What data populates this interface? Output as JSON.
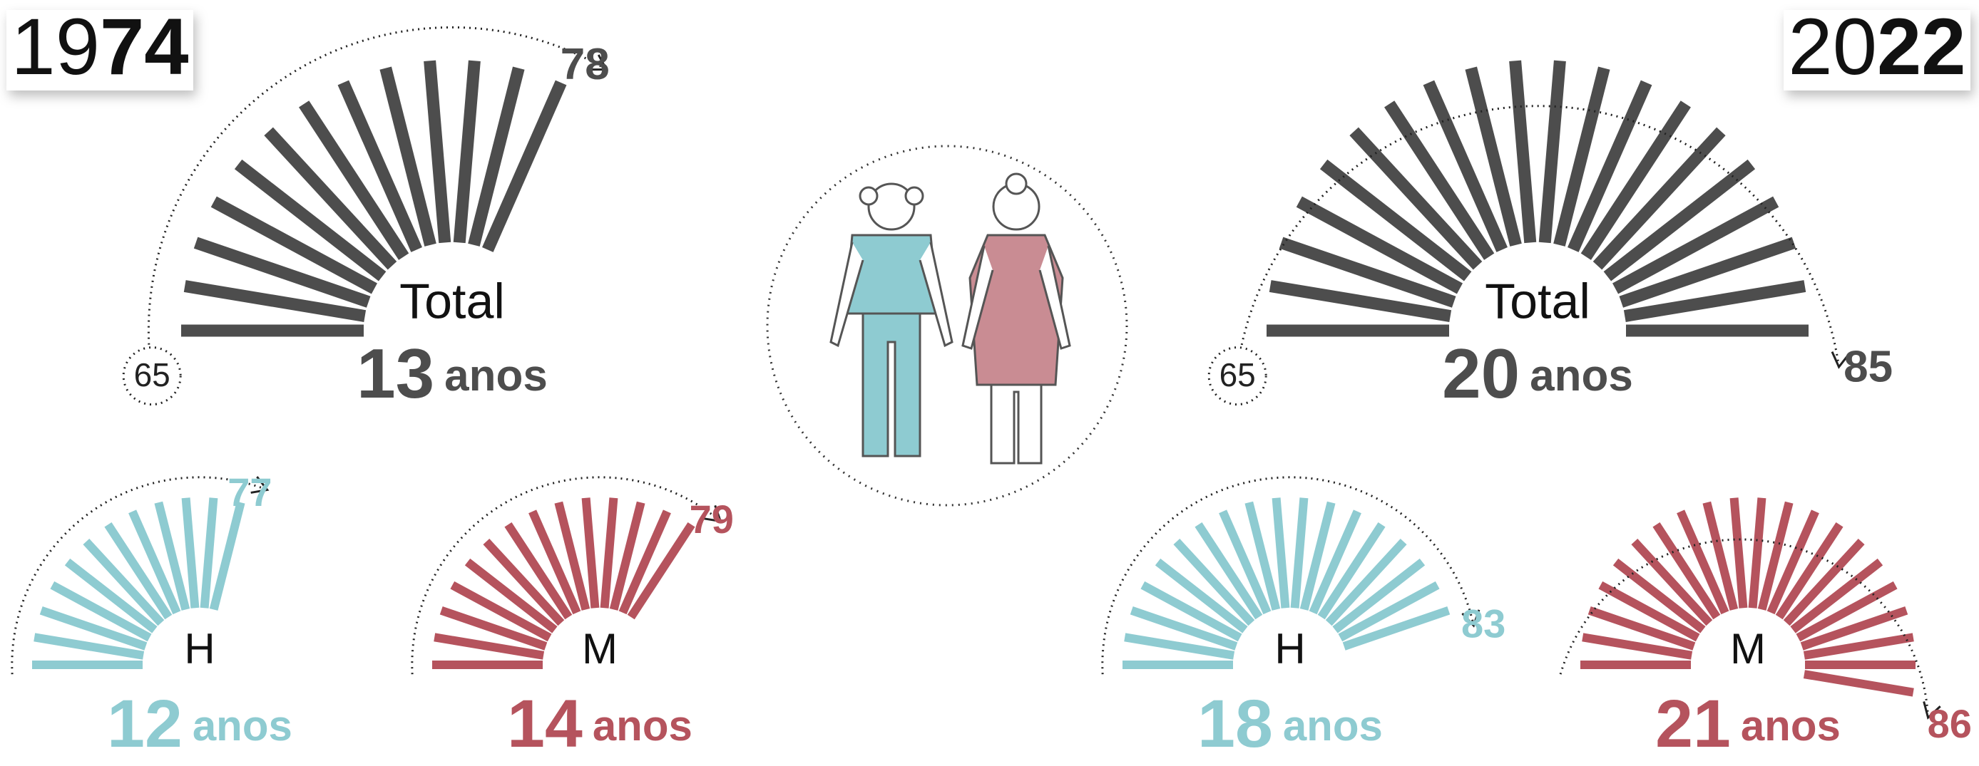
{
  "periods": [
    {
      "year": {
        "plain": "19",
        "bold": "74"
      },
      "total": {
        "label": "Total",
        "years": 13,
        "unit": "anos",
        "start": 65,
        "end": 78,
        "color": "#4d4d4d"
      },
      "men": {
        "label": "H",
        "years": 12,
        "unit": "anos",
        "end": 77,
        "color": "#8ecbd1"
      },
      "women": {
        "label": "M",
        "years": 14,
        "unit": "anos",
        "end": 79,
        "color": "#b5535d"
      }
    },
    {
      "year": {
        "plain": "20",
        "bold": "22"
      },
      "total": {
        "label": "Total",
        "years": 20,
        "unit": "anos",
        "start": 65,
        "end": 85,
        "color": "#4d4d4d"
      },
      "men": {
        "label": "H",
        "years": 18,
        "unit": "anos",
        "end": 83,
        "color": "#8ecbd1"
      },
      "women": {
        "label": "M",
        "years": 21,
        "unit": "anos",
        "end": 86,
        "color": "#b5535d"
      }
    }
  ]
}
